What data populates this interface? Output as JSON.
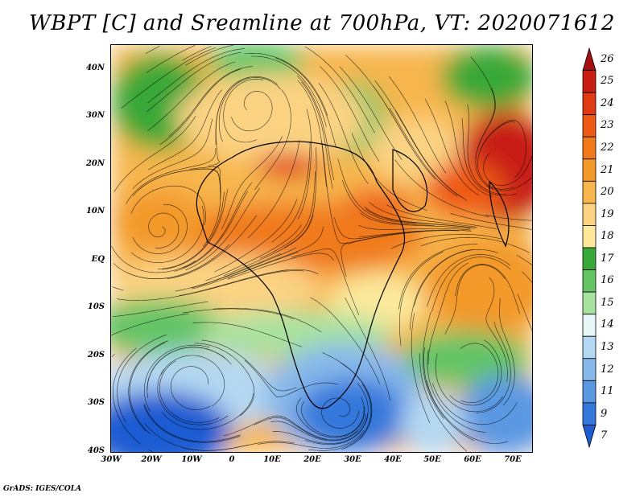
{
  "title": "WBPT [C] and Sreamline at 700hPa, VT: 2020071612",
  "footer": "GrADS: IGES/COLA",
  "map": {
    "lat_labels": [
      "40N",
      "30N",
      "20N",
      "10N",
      "EQ",
      "10S",
      "20S",
      "30S",
      "40S"
    ],
    "lon_labels": [
      "30W",
      "20W",
      "10W",
      "0",
      "10E",
      "20E",
      "30E",
      "40E",
      "50E",
      "60E",
      "70E"
    ],
    "lat_range": [
      -40,
      46
    ],
    "lon_range": [
      -30,
      75
    ]
  },
  "colorbar": {
    "labels": [
      "26",
      "25",
      "24",
      "23",
      "22",
      "21",
      "20",
      "19",
      "18",
      "17",
      "16",
      "15",
      "14",
      "13",
      "12",
      "11",
      "9",
      "7"
    ],
    "colors": [
      "#a50f0f",
      "#c81e14",
      "#e03a14",
      "#ee5a16",
      "#f07a1c",
      "#f39a2a",
      "#f7b64e",
      "#fbd383",
      "#fce99c",
      "#38a838",
      "#64c466",
      "#a8e2a0",
      "#e8f8f8",
      "#b4d8f2",
      "#86b8ea",
      "#5a98e2",
      "#3678dc",
      "#1e5cd2"
    ]
  }
}
